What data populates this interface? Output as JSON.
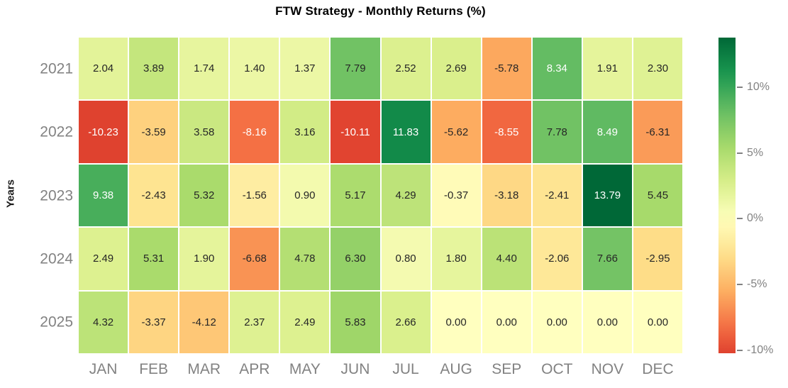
{
  "chart_data": {
    "type": "heatmap",
    "title": "FTW Strategy - Monthly Returns (%)",
    "ylabel": "Years",
    "rows": [
      "2021",
      "2022",
      "2023",
      "2024",
      "2025"
    ],
    "columns": [
      "JAN",
      "FEB",
      "MAR",
      "APR",
      "MAY",
      "JUN",
      "JUL",
      "AUG",
      "SEP",
      "OCT",
      "NOV",
      "DEC"
    ],
    "values": [
      [
        2.04,
        3.89,
        1.74,
        1.4,
        1.37,
        7.79,
        2.52,
        2.69,
        -5.78,
        8.34,
        1.91,
        2.3
      ],
      [
        -10.23,
        -3.59,
        3.58,
        -8.16,
        3.16,
        -10.11,
        11.83,
        -5.62,
        -8.55,
        7.78,
        8.49,
        -6.31
      ],
      [
        9.38,
        -2.43,
        5.32,
        -1.56,
        0.9,
        5.17,
        4.29,
        -0.37,
        -3.18,
        -2.41,
        13.79,
        5.45
      ],
      [
        2.49,
        5.31,
        1.9,
        -6.68,
        4.78,
        6.3,
        0.8,
        1.8,
        4.4,
        -2.06,
        7.66,
        -2.95
      ],
      [
        4.32,
        -3.37,
        -4.12,
        2.37,
        2.49,
        5.83,
        2.66,
        0.0,
        0.0,
        0.0,
        0.0,
        0.0
      ]
    ],
    "value_format_decimals": 2,
    "colormap": "RdYlGn",
    "colormap_stops": [
      "#a50026",
      "#d73027",
      "#f46d43",
      "#fdae61",
      "#fee08b",
      "#ffffbf",
      "#d9ef8b",
      "#a6d96a",
      "#66bd63",
      "#1a9850",
      "#006837"
    ],
    "center": 0,
    "vmin": -10.23,
    "vmax": 13.79,
    "colorbar_ticks": [
      {
        "label": "10%",
        "value": 10
      },
      {
        "label": "5%",
        "value": 5
      },
      {
        "label": "0%",
        "value": 0
      },
      {
        "label": "-5%",
        "value": -5
      },
      {
        "label": "-10%",
        "value": -10
      }
    ],
    "legend_position": "right",
    "grid": false,
    "colors": {
      "background": "#ffffff",
      "tick_label": "#828282",
      "title": "#000000",
      "annotation_dark": "#262626",
      "annotation_light": "#ffffff",
      "cell_gap": "#ffffff"
    }
  }
}
